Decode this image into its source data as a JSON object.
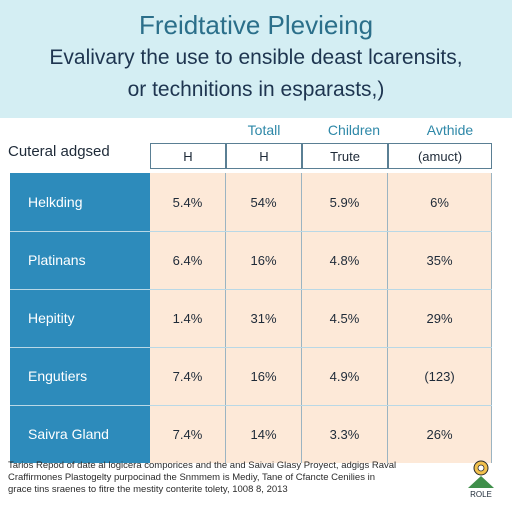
{
  "header": {
    "title": "Freidtative Plevieing",
    "subtitle_line1": "Evalivary the use to ensible deast lcarensits,",
    "subtitle_line2": "or technitions in esparasts,)"
  },
  "colors": {
    "header_bg": "#d4eef3",
    "row_label_bg": "#2d8bbb",
    "value_cell_bg": "#fde9d8",
    "column_label_text": "#2e88a8"
  },
  "chart_data": {
    "type": "table",
    "corner_label": "Cuteral adgsed",
    "column_groups": [
      "",
      "Totall",
      "Children",
      "Avthide"
    ],
    "column_headers": [
      "H",
      "H",
      "Trute",
      "(amuct)"
    ],
    "rows": [
      {
        "label": "Helkding",
        "values": [
          "5.4%",
          "54%",
          "5.9%",
          "6%"
        ]
      },
      {
        "label": "Platinans",
        "values": [
          "6.4%",
          "16%",
          "4.8%",
          "35%"
        ]
      },
      {
        "label": "Hepitity",
        "values": [
          "1.4%",
          "31%",
          "4.5%",
          "29%"
        ]
      },
      {
        "label": "Engutiers",
        "values": [
          "7.4%",
          "16%",
          "4.9%",
          "(123)"
        ]
      },
      {
        "label": "Saivra Gland",
        "values": [
          "7.4%",
          "14%",
          "3.3%",
          "26%"
        ]
      }
    ]
  },
  "footer": {
    "line1": "Tarios Repod of date al logicera comporices and the and Saivai Glasy Proyect, adgigs Raval",
    "line2": "Craffirmones Plastogelty purpocinad the Snmmem is Mediy, Tane of Cfancte Cenilies in",
    "line3": "grace tins sraenes to fitre the mestity conterite tolety, 1008 8, 2013"
  },
  "logo": {
    "text": "ROLE"
  }
}
